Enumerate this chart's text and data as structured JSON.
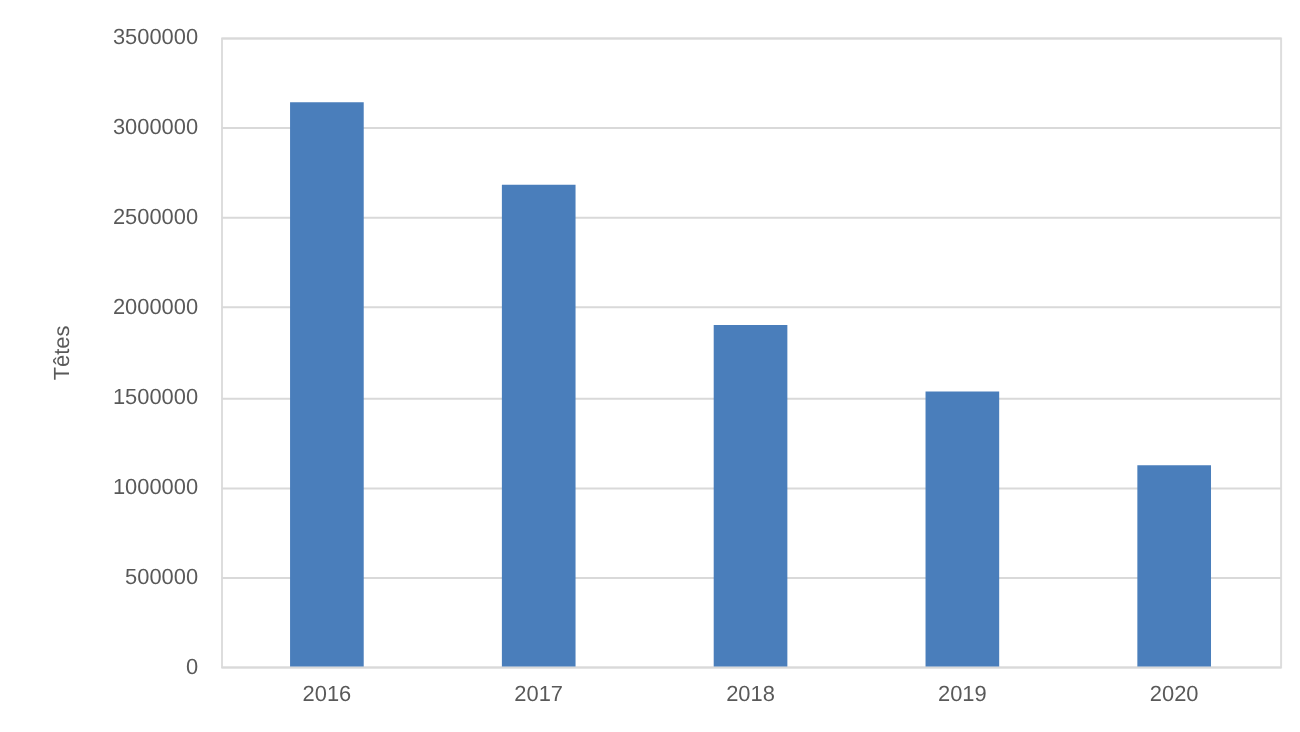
{
  "chart_data": {
    "type": "bar",
    "ylabel": "Têtes",
    "categories": [
      "2016",
      "2017",
      "2018",
      "2019",
      "2020"
    ],
    "values": [
      3140000,
      2680000,
      1900000,
      1530000,
      1120000
    ],
    "color": "#4a7ebb",
    "ylim": [
      0,
      3500000
    ],
    "yticks": [
      0,
      500000,
      1000000,
      1500000,
      2000000,
      2500000,
      3000000,
      3500000
    ],
    "grid": "y"
  }
}
